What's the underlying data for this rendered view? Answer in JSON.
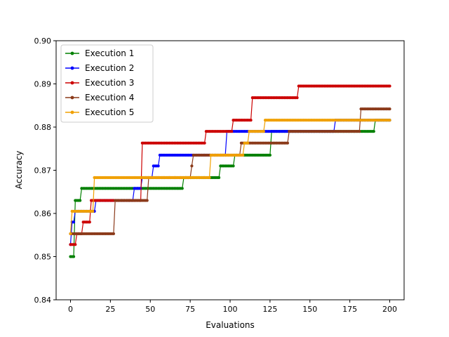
{
  "chart_data": {
    "type": "line",
    "xlabel": "Evaluations",
    "ylabel": "Accuracy",
    "xlim": [
      -9,
      209
    ],
    "ylim": [
      0.84,
      0.9
    ],
    "xticks": [
      0,
      25,
      50,
      75,
      100,
      125,
      150,
      175,
      200
    ],
    "yticks": [
      0.84,
      0.85,
      0.86,
      0.87,
      0.88,
      0.89,
      0.9
    ],
    "xtick_labels": [
      "0",
      "25",
      "50",
      "75",
      "100",
      "125",
      "150",
      "175",
      "200"
    ],
    "ytick_labels": [
      "0.84",
      "0.85",
      "0.86",
      "0.87",
      "0.88",
      "0.89",
      "0.90"
    ],
    "grid": false,
    "legend_position": "top-left",
    "series": [
      {
        "name": "Execution 1",
        "color": "#008000",
        "steps": [
          [
            0,
            0.85
          ],
          [
            3,
            0.863
          ],
          [
            7,
            0.8658
          ],
          [
            70,
            0.8658
          ],
          [
            71,
            0.8683
          ],
          [
            84,
            0.8683
          ],
          [
            94,
            0.871
          ],
          [
            103,
            0.8735
          ],
          [
            120,
            0.8735
          ],
          [
            126,
            0.879
          ],
          [
            190,
            0.879
          ],
          [
            191,
            0.8816
          ],
          [
            200,
            0.8816
          ]
        ]
      },
      {
        "name": "Execution 2",
        "color": "#0000ff",
        "steps": [
          [
            0,
            0.8528
          ],
          [
            1,
            0.858
          ],
          [
            3,
            0.8605
          ],
          [
            15,
            0.8605
          ],
          [
            16,
            0.863
          ],
          [
            39,
            0.863
          ],
          [
            40,
            0.8658
          ],
          [
            44,
            0.8658
          ],
          [
            45,
            0.8683
          ],
          [
            51,
            0.8683
          ],
          [
            52,
            0.871
          ],
          [
            56,
            0.8735
          ],
          [
            97,
            0.8735
          ],
          [
            98,
            0.879
          ],
          [
            165,
            0.879
          ],
          [
            166,
            0.8816
          ],
          [
            200,
            0.8816
          ]
        ]
      },
      {
        "name": "Execution 3",
        "color": "#cc0000",
        "steps": [
          [
            0,
            0.8528
          ],
          [
            4,
            0.8553
          ],
          [
            8,
            0.858
          ],
          [
            13,
            0.863
          ],
          [
            44,
            0.863
          ],
          [
            45,
            0.8763
          ],
          [
            84,
            0.8763
          ],
          [
            85,
            0.879
          ],
          [
            101,
            0.879
          ],
          [
            102,
            0.8816
          ],
          [
            113,
            0.8816
          ],
          [
            114,
            0.8868
          ],
          [
            142,
            0.8868
          ],
          [
            143,
            0.8895
          ],
          [
            200,
            0.8895
          ]
        ]
      },
      {
        "name": "Execution 4",
        "color": "#8b3a1a",
        "steps": [
          [
            0,
            0.8553
          ],
          [
            27,
            0.8553
          ],
          [
            28,
            0.863
          ],
          [
            48,
            0.863
          ],
          [
            49,
            0.8683
          ],
          [
            75,
            0.8683
          ],
          [
            76,
            0.871
          ],
          [
            77,
            0.8735
          ],
          [
            106,
            0.8735
          ],
          [
            107,
            0.8763
          ],
          [
            136,
            0.8763
          ],
          [
            137,
            0.879
          ],
          [
            181,
            0.879
          ],
          [
            182,
            0.8842
          ],
          [
            200,
            0.8842
          ]
        ]
      },
      {
        "name": "Execution 5",
        "color": "#f0a000",
        "steps": [
          [
            0,
            0.8553
          ],
          [
            1,
            0.8605
          ],
          [
            14,
            0.8605
          ],
          [
            15,
            0.8683
          ],
          [
            87,
            0.8683
          ],
          [
            88,
            0.8735
          ],
          [
            108,
            0.8735
          ],
          [
            109,
            0.8763
          ],
          [
            111,
            0.8763
          ],
          [
            112,
            0.879
          ],
          [
            121,
            0.879
          ],
          [
            122,
            0.8816
          ],
          [
            200,
            0.8816
          ]
        ]
      }
    ]
  }
}
